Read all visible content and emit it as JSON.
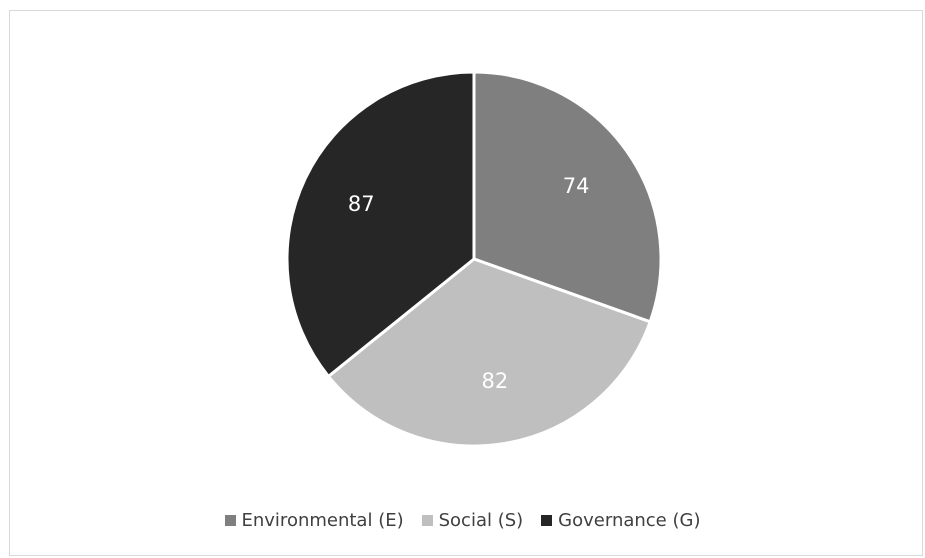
{
  "chart_data": {
    "type": "pie",
    "title": "",
    "categories": [
      "Environmental (E)",
      "Social (S)",
      "Governance (G)"
    ],
    "values": [
      74,
      82,
      87
    ],
    "colors": [
      "#7f7f7f",
      "#bfbfbf",
      "#262626"
    ],
    "label_color": "#ffffff",
    "legend": "bottom",
    "start_angle": "top (12 o'clock)",
    "direction": "clockwise"
  }
}
